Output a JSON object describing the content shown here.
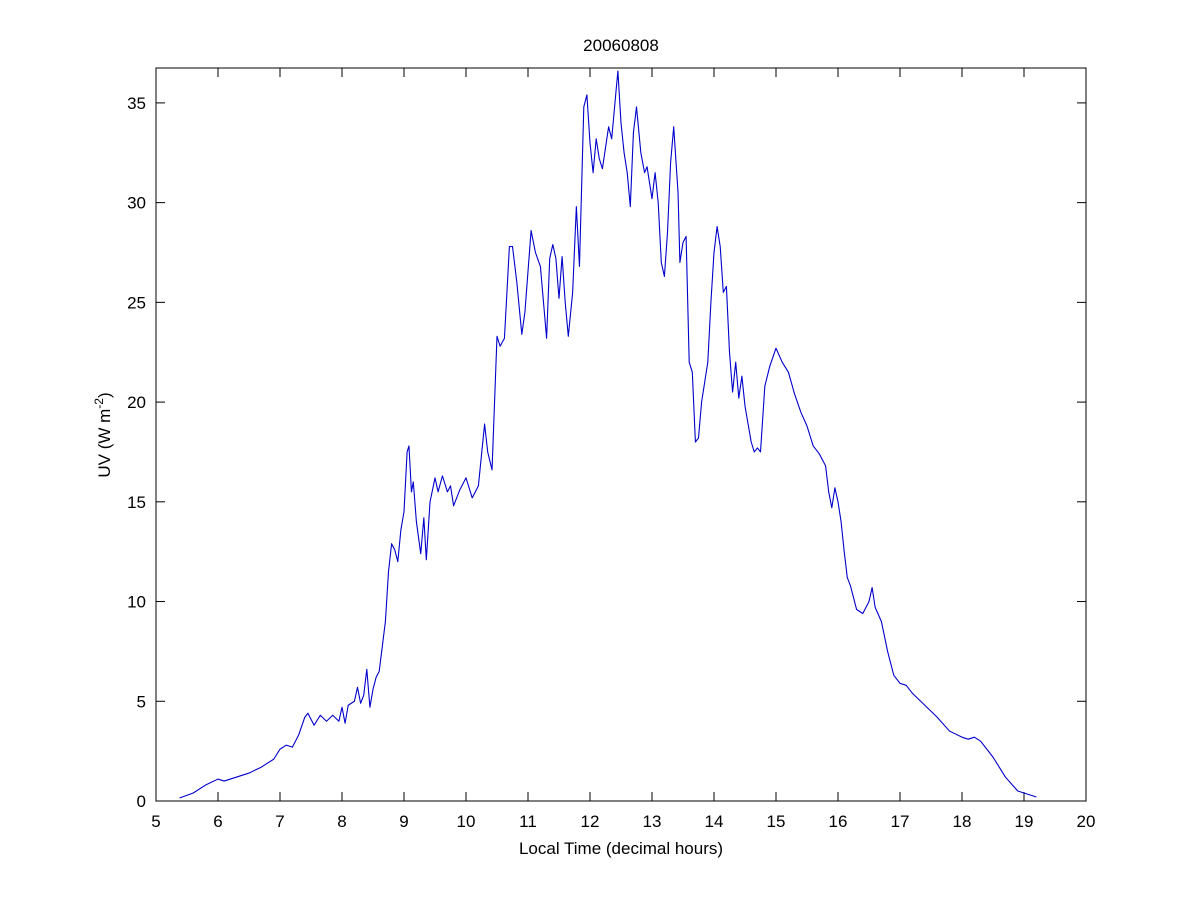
{
  "chart_data": {
    "type": "line",
    "title": "20060808",
    "xlabel": "Local Time (decimal hours)",
    "ylabel": {
      "text": "UV (W m",
      "superscript": "-2",
      "end": ")"
    },
    "color": "#0000cc",
    "xlim": [
      5,
      20
    ],
    "xticks": [
      5,
      6,
      7,
      8,
      9,
      10,
      11,
      12,
      13,
      14,
      15,
      16,
      17,
      18,
      19,
      20
    ],
    "ylim": [
      0,
      36.75
    ],
    "yticks": [
      0,
      5,
      10,
      15,
      20,
      25,
      30,
      35
    ],
    "grid": false,
    "x": [
      5.38,
      5.6,
      5.8,
      6.0,
      6.1,
      6.3,
      6.5,
      6.7,
      6.9,
      7.0,
      7.1,
      7.2,
      7.3,
      7.4,
      7.45,
      7.55,
      7.65,
      7.75,
      7.85,
      7.95,
      8.0,
      8.05,
      8.1,
      8.2,
      8.25,
      8.3,
      8.35,
      8.4,
      8.45,
      8.5,
      8.55,
      8.6,
      8.7,
      8.75,
      8.8,
      8.85,
      8.9,
      8.95,
      9.0,
      9.05,
      9.08,
      9.12,
      9.15,
      9.2,
      9.27,
      9.32,
      9.36,
      9.42,
      9.5,
      9.55,
      9.62,
      9.7,
      9.75,
      9.8,
      9.9,
      10.0,
      10.1,
      10.2,
      10.3,
      10.35,
      10.42,
      10.5,
      10.55,
      10.62,
      10.7,
      10.75,
      10.82,
      10.9,
      10.95,
      11.05,
      11.12,
      11.2,
      11.3,
      11.35,
      11.4,
      11.45,
      11.5,
      11.55,
      11.6,
      11.65,
      11.72,
      11.78,
      11.83,
      11.9,
      11.95,
      12.0,
      12.05,
      12.1,
      12.15,
      12.2,
      12.3,
      12.35,
      12.42,
      12.45,
      12.5,
      12.55,
      12.6,
      12.65,
      12.7,
      12.75,
      12.82,
      12.88,
      12.92,
      13.0,
      13.05,
      13.1,
      13.15,
      13.2,
      13.25,
      13.3,
      13.35,
      13.42,
      13.45,
      13.5,
      13.55,
      13.6,
      13.65,
      13.7,
      13.75,
      13.8,
      13.9,
      13.95,
      14.0,
      14.05,
      14.1,
      14.15,
      14.2,
      14.25,
      14.3,
      14.35,
      14.4,
      14.45,
      14.5,
      14.6,
      14.65,
      14.7,
      14.75,
      14.82,
      14.9,
      15.0,
      15.1,
      15.2,
      15.3,
      15.4,
      15.5,
      15.6,
      15.7,
      15.8,
      15.85,
      15.9,
      15.95,
      16.0,
      16.05,
      16.1,
      16.15,
      16.2,
      16.3,
      16.4,
      16.5,
      16.55,
      16.6,
      16.7,
      16.8,
      16.9,
      17.0,
      17.1,
      17.2,
      17.4,
      17.6,
      17.8,
      18.0,
      18.1,
      18.2,
      18.3,
      18.5,
      18.7,
      18.9,
      19.2
    ],
    "values": [
      0.15,
      0.4,
      0.8,
      1.1,
      1.0,
      1.2,
      1.4,
      1.7,
      2.1,
      2.6,
      2.8,
      2.7,
      3.3,
      4.2,
      4.4,
      3.8,
      4.3,
      4.0,
      4.3,
      4.0,
      4.7,
      3.9,
      4.8,
      5.0,
      5.7,
      4.9,
      5.3,
      6.6,
      4.7,
      5.6,
      6.2,
      6.5,
      9.0,
      11.5,
      12.9,
      12.6,
      12.0,
      13.6,
      14.5,
      17.5,
      17.8,
      15.5,
      16.0,
      14.0,
      12.4,
      14.2,
      12.1,
      15.0,
      16.2,
      15.5,
      16.3,
      15.5,
      15.8,
      14.8,
      15.6,
      16.2,
      15.2,
      15.8,
      18.9,
      17.5,
      16.6,
      23.3,
      22.8,
      23.2,
      27.8,
      27.8,
      26.0,
      23.4,
      24.5,
      28.6,
      27.5,
      26.8,
      23.2,
      27.2,
      27.9,
      27.2,
      25.2,
      27.3,
      25.0,
      23.3,
      25.5,
      29.8,
      26.8,
      34.8,
      35.4,
      33.0,
      31.5,
      33.2,
      32.2,
      31.7,
      33.8,
      33.2,
      35.6,
      36.6,
      34.0,
      32.5,
      31.5,
      29.8,
      33.5,
      34.8,
      32.5,
      31.5,
      31.8,
      30.2,
      31.5,
      30.0,
      27.0,
      26.3,
      28.5,
      32.0,
      33.8,
      30.5,
      27.0,
      28.0,
      28.3,
      22.0,
      21.5,
      18.0,
      18.2,
      20.0,
      22.0,
      25.0,
      27.5,
      28.8,
      27.8,
      25.5,
      25.8,
      22.5,
      20.5,
      22.0,
      20.2,
      21.3,
      19.8,
      18.0,
      17.5,
      17.7,
      17.5,
      20.8,
      21.8,
      22.7,
      22.0,
      21.5,
      20.4,
      19.5,
      18.8,
      17.8,
      17.4,
      16.8,
      15.5,
      14.7,
      15.7,
      15.0,
      14.0,
      12.5,
      11.2,
      10.8,
      9.6,
      9.4,
      10.0,
      10.7,
      9.7,
      9.0,
      7.5,
      6.3,
      5.9,
      5.8,
      5.4,
      4.8,
      4.2,
      3.5,
      3.2,
      3.1,
      3.2,
      3.0,
      2.2,
      1.2,
      0.5,
      0.2
    ]
  }
}
